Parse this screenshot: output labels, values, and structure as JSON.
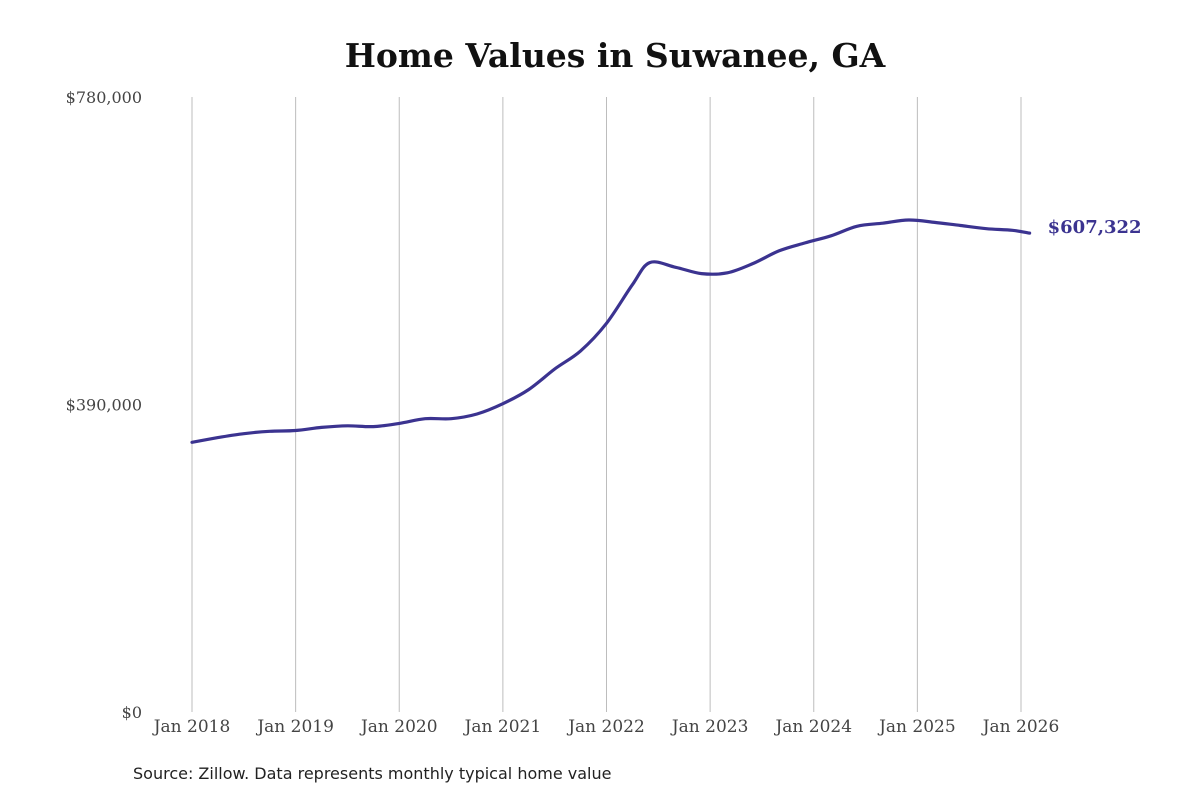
{
  "chart_data": {
    "type": "line",
    "title": "Home Values in Suwanee, GA",
    "xlabel": "",
    "ylabel": "",
    "x_ticks": [
      "Jan 2018",
      "Jan 2019",
      "Jan 2020",
      "Jan 2021",
      "Jan 2022",
      "Jan 2023",
      "Jan 2024",
      "Jan 2025",
      "Jan 2026"
    ],
    "y_ticks": [
      "$780,000",
      "$390,000",
      "$0"
    ],
    "ylim": [
      0,
      780000
    ],
    "grid": "vertical",
    "colors": {
      "line": "#3b3390",
      "grid": "#bdbdbd"
    },
    "series": [
      {
        "end_label": "$607,322",
        "points": [
          [
            "2018-01",
            342000
          ],
          [
            "2018-04",
            348000
          ],
          [
            "2018-07",
            353000
          ],
          [
            "2018-10",
            356000
          ],
          [
            "2019-01",
            357000
          ],
          [
            "2019-04",
            361000
          ],
          [
            "2019-07",
            363000
          ],
          [
            "2019-10",
            362000
          ],
          [
            "2020-01",
            366000
          ],
          [
            "2020-04",
            372000
          ],
          [
            "2020-07",
            372000
          ],
          [
            "2020-10",
            378000
          ],
          [
            "2021-01",
            391000
          ],
          [
            "2021-04",
            409000
          ],
          [
            "2021-07",
            435000
          ],
          [
            "2021-10",
            458000
          ],
          [
            "2022-01",
            493000
          ],
          [
            "2022-04",
            542000
          ],
          [
            "2022-06",
            570000
          ],
          [
            "2022-09",
            564000
          ],
          [
            "2022-12",
            556000
          ],
          [
            "2023-03",
            557000
          ],
          [
            "2023-06",
            569000
          ],
          [
            "2023-09",
            585000
          ],
          [
            "2023-12",
            595000
          ],
          [
            "2024-03",
            604000
          ],
          [
            "2024-06",
            616000
          ],
          [
            "2024-09",
            620000
          ],
          [
            "2024-12",
            624000
          ],
          [
            "2025-03",
            621000
          ],
          [
            "2025-06",
            617000
          ],
          [
            "2025-09",
            613000
          ],
          [
            "2025-12",
            611000
          ],
          [
            "2026-02",
            607322
          ]
        ]
      }
    ]
  },
  "footer": {
    "source": "Source: Zillow. Data represents monthly typical home value"
  }
}
